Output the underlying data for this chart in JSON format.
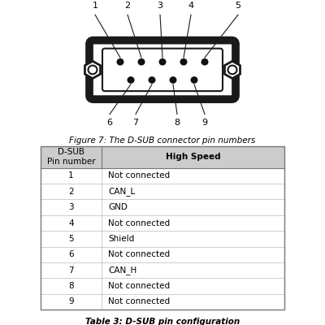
{
  "figure_caption": "Figure 7: The D-SUB connector pin numbers",
  "table_caption": "Table 3: D-SUB pin configuration",
  "table_header_col1": "D-SUB\nPin number",
  "table_header_col2": "High Speed",
  "table_rows": [
    [
      "1",
      "Not connected"
    ],
    [
      "2",
      "CAN_L"
    ],
    [
      "3",
      "GND"
    ],
    [
      "4",
      "Not connected"
    ],
    [
      "5",
      "Shield"
    ],
    [
      "6",
      "Not connected"
    ],
    [
      "7",
      "CAN_H"
    ],
    [
      "8",
      "Not connected"
    ],
    [
      "9",
      "Not connected"
    ]
  ],
  "bg_color": "#ffffff",
  "connector_outline_color": "#1a1a1a",
  "pin_color": "#111111",
  "text_color": "#000000",
  "table_header_bg": "#cccccc",
  "table_border_color": "#777777",
  "font_size_caption": 7.5,
  "font_size_table": 7.5,
  "font_size_pin_label": 8
}
